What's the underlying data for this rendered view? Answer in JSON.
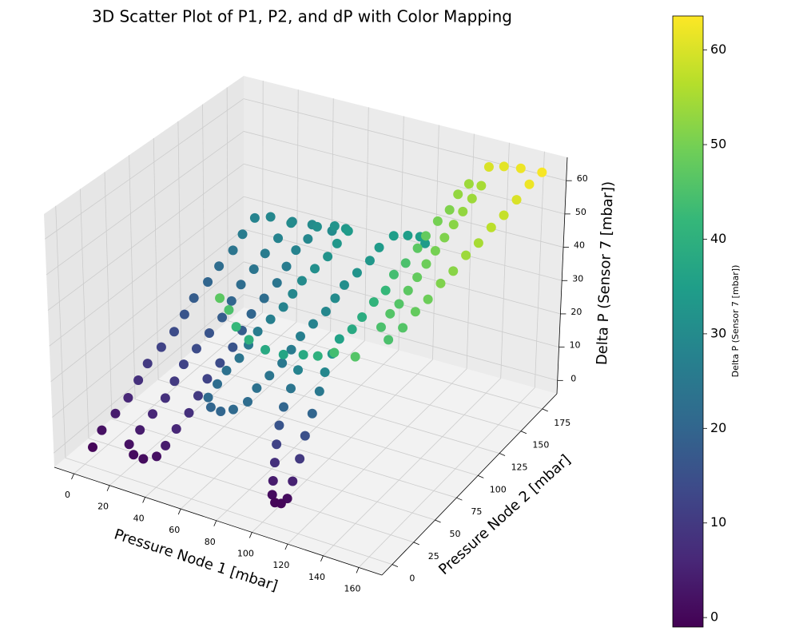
{
  "chart_data": {
    "type": "scatter3d",
    "title": "3D Scatter Plot of P1, P2, and dP with Color Mapping",
    "xlabel": "Pressure Node 1 [mbar]",
    "ylabel": "Pressure Node 2 [mbar]",
    "zlabel": "Delta P (Sensor 7 [mbar])",
    "xlim": [
      -11,
      173
    ],
    "ylim": [
      -12,
      192
    ],
    "zlim": [
      -4,
      67
    ],
    "xticks": [
      0,
      20,
      40,
      60,
      80,
      100,
      120,
      140,
      160
    ],
    "yticks": [
      0,
      25,
      50,
      75,
      100,
      125,
      150,
      175
    ],
    "zticks": [
      0,
      10,
      20,
      30,
      40,
      50,
      60
    ],
    "grid": true,
    "colormap": [
      "#440154",
      "#482878",
      "#3e4989",
      "#31688e",
      "#26828e",
      "#1f9e89",
      "#35b779",
      "#6ece58",
      "#b5de2b",
      "#fde725"
    ],
    "colorbar": {
      "label": "Delta P (Sensor 7 [mbar])",
      "lim": [
        -1,
        63.6
      ],
      "ticks": [
        0,
        10,
        20,
        30,
        40,
        50,
        60
      ]
    },
    "x": [
      2,
      1,
      2,
      3,
      2,
      1,
      2,
      3,
      2,
      1,
      2,
      2,
      3,
      2,
      2,
      10,
      22,
      34,
      46,
      24,
      23,
      22,
      22,
      21,
      22,
      23,
      22,
      21,
      20,
      21,
      22,
      21,
      20,
      19,
      24,
      30,
      36,
      38,
      38,
      39,
      38,
      37,
      38,
      39,
      38,
      37,
      38,
      39,
      38,
      37,
      38,
      39,
      48,
      56,
      60,
      60,
      61,
      60,
      59,
      60,
      61,
      60,
      59,
      60,
      61,
      60,
      61,
      62,
      66,
      72,
      78,
      82,
      81,
      82,
      83,
      82,
      81,
      82,
      83,
      82,
      81,
      82,
      83,
      82,
      84,
      90,
      96,
      100,
      98,
      97,
      96,
      96,
      97,
      98,
      99,
      100,
      103,
      106,
      108,
      109,
      110,
      110,
      111,
      112,
      112,
      113,
      114,
      118,
      118,
      119,
      120,
      119,
      120,
      121,
      120,
      121,
      122,
      121,
      122,
      130,
      131,
      132,
      133,
      134,
      135,
      136,
      137,
      138,
      139,
      140,
      141,
      150,
      152,
      153,
      154,
      155,
      156,
      157,
      158,
      159,
      160,
      161,
      162,
      163,
      150,
      140,
      132,
      64,
      70,
      76,
      84,
      92,
      100,
      110,
      120,
      132,
      146
    ],
    "y": [
      5,
      17,
      30,
      42,
      55,
      67,
      80,
      92,
      105,
      117,
      130,
      142,
      155,
      167,
      180,
      182,
      183,
      182,
      181,
      178,
      166,
      154,
      142,
      130,
      118,
      106,
      94,
      82,
      70,
      58,
      46,
      34,
      22,
      12,
      7,
      6,
      9,
      15,
      27,
      39,
      51,
      63,
      75,
      87,
      99,
      111,
      123,
      135,
      147,
      159,
      170,
      178,
      180,
      177,
      172,
      160,
      148,
      136,
      124,
      112,
      100,
      88,
      76,
      64,
      52,
      40,
      28,
      16,
      11,
      10,
      12,
      20,
      32,
      44,
      56,
      68,
      80,
      92,
      104,
      116,
      128,
      140,
      152,
      164,
      176,
      180,
      182,
      180,
      44,
      38,
      32,
      27,
      22,
      18,
      14,
      11,
      8,
      9,
      12,
      16,
      22,
      28,
      34,
      40,
      46,
      52,
      58,
      64,
      75,
      86,
      97,
      108,
      119,
      130,
      141,
      152,
      163,
      174,
      184,
      182,
      170,
      158,
      146,
      134,
      122,
      110,
      98,
      86,
      74,
      62,
      50,
      40,
      52,
      64,
      76,
      88,
      100,
      112,
      124,
      136,
      148,
      160,
      172,
      184,
      186,
      187,
      186,
      26,
      24,
      20,
      18,
      20,
      24,
      26,
      22,
      16,
      11
    ],
    "z": [
      0,
      2,
      4,
      6,
      8,
      10,
      12,
      14,
      16,
      18,
      20,
      22,
      24,
      26,
      28,
      29,
      29,
      30,
      30,
      30,
      28,
      26,
      24,
      22,
      20,
      18,
      16,
      14,
      12,
      10,
      8,
      6,
      4,
      2,
      1,
      1,
      2,
      4,
      6,
      8,
      10,
      12,
      14,
      16,
      18,
      20,
      22,
      24,
      26,
      28,
      29,
      31,
      32,
      33,
      34,
      33,
      32,
      31,
      30,
      29,
      28,
      27,
      26,
      25,
      24,
      23,
      22,
      21,
      20,
      20,
      21,
      22,
      23,
      24,
      25,
      26,
      27,
      28,
      29,
      30,
      31,
      32,
      33,
      34,
      35,
      35,
      35,
      34,
      28,
      24,
      20,
      16,
      12,
      8,
      4,
      1,
      0,
      0,
      1,
      5,
      10,
      15,
      20,
      25,
      29,
      33,
      36,
      38,
      39,
      41,
      42,
      44,
      45,
      47,
      48,
      50,
      51,
      53,
      54,
      55,
      54,
      53,
      52,
      51,
      50,
      49,
      48,
      47,
      46,
      46,
      45,
      45,
      46,
      48,
      49,
      51,
      52,
      54,
      55,
      57,
      58,
      60,
      62,
      63,
      62,
      61,
      60,
      47,
      45,
      42,
      40,
      38,
      37,
      38,
      40,
      44,
      46
    ]
  }
}
